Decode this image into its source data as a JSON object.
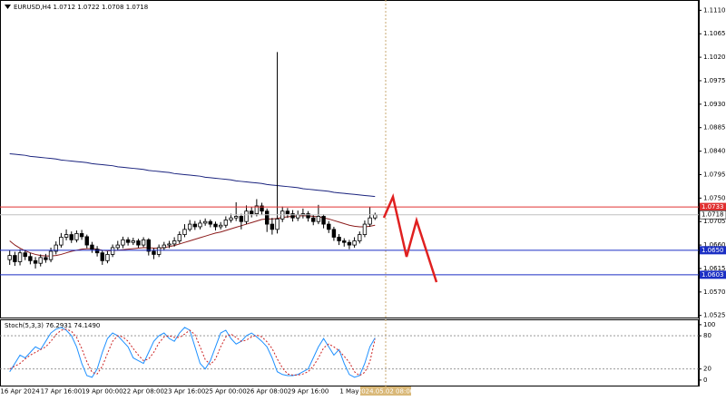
{
  "chart_data": [
    {
      "type": "candlestick",
      "title": "EURUSD,H4 1.0712 1.0722 1.0708 1.0718",
      "categories": [
        null,
        null,
        "16 Apr 2024",
        null,
        null,
        null,
        null,
        null,
        null,
        null,
        "17 Apr 16:00",
        null,
        null,
        null,
        null,
        null,
        null,
        null,
        "19 Apr 00:00",
        null,
        null,
        null,
        null,
        null,
        null,
        null,
        "22 Apr 08:00",
        null,
        null,
        null,
        null,
        null,
        null,
        null,
        "23 Apr 16:00",
        null,
        null,
        null,
        null,
        null,
        null,
        null,
        "25 Apr 00:00",
        null,
        null,
        null,
        null,
        null,
        null,
        null,
        "26 Apr 08:00",
        null,
        null,
        null,
        null,
        null,
        null,
        null,
        "29 Apr 16:00",
        null,
        null,
        null,
        null,
        null,
        null,
        null,
        "1 May",
        null,
        null,
        null,
        null,
        null
      ],
      "open": [
        1.0632,
        1.064,
        1.0628,
        1.0645,
        1.0638,
        1.063,
        1.0625,
        1.0636,
        1.0632,
        1.0648,
        1.066,
        1.0675,
        1.068,
        1.067,
        1.0682,
        1.0676,
        1.066,
        1.0652,
        1.0645,
        1.063,
        1.0642,
        1.0655,
        1.066,
        1.067,
        1.0665,
        1.0668,
        1.066,
        1.067,
        1.0648,
        1.0642,
        1.0655,
        1.066,
        1.0662,
        1.0668,
        1.068,
        1.069,
        1.07,
        1.0695,
        1.0702,
        1.0705,
        1.07,
        1.0695,
        1.0698,
        1.0708,
        1.0712,
        1.0715,
        1.0705,
        1.0725,
        1.072,
        1.0735,
        1.0725,
        1.07,
        1.069,
        1.071,
        1.0725,
        1.072,
        1.0712,
        1.0718,
        1.072,
        1.0712,
        1.0705,
        1.0715,
        1.07,
        1.069,
        1.0675,
        1.0668,
        1.0665,
        1.066,
        1.0668,
        1.068,
        1.07,
        1.0712
      ],
      "high": [
        1.065,
        1.0647,
        1.0652,
        1.0651,
        1.0645,
        1.0637,
        1.0642,
        1.0643,
        1.0655,
        1.0667,
        1.0683,
        1.069,
        1.0686,
        1.0688,
        1.0689,
        1.068,
        1.0666,
        1.0658,
        1.065,
        1.0648,
        1.0661,
        1.0668,
        1.0676,
        1.0675,
        1.0674,
        1.0672,
        1.0675,
        1.0673,
        1.0654,
        1.0661,
        1.0666,
        1.0668,
        1.0675,
        1.0686,
        1.07,
        1.0708,
        1.0706,
        1.0708,
        1.0711,
        1.0709,
        1.0705,
        1.0704,
        1.0715,
        1.072,
        1.0742,
        1.072,
        1.0736,
        1.0733,
        1.0748,
        1.0741,
        1.073,
        1.0712,
        1.103,
        1.0734,
        1.0731,
        1.0727,
        1.0726,
        1.073,
        1.0725,
        1.0718,
        1.0737,
        1.0719,
        1.0706,
        1.0695,
        1.0681,
        1.0673,
        1.067,
        1.0675,
        1.0686,
        1.0707,
        1.0733,
        1.0722
      ],
      "low": [
        1.0622,
        1.062,
        1.0621,
        1.0631,
        1.0623,
        1.0615,
        1.0619,
        1.0626,
        1.0627,
        1.0642,
        1.0655,
        1.0669,
        1.0664,
        1.0665,
        1.067,
        1.0654,
        1.0645,
        1.0638,
        1.0622,
        1.0625,
        1.0637,
        1.065,
        1.0654,
        1.0659,
        1.066,
        1.0655,
        1.0656,
        1.064,
        1.0633,
        1.0637,
        1.065,
        1.0654,
        1.0657,
        1.0663,
        1.0675,
        1.0686,
        1.0689,
        1.069,
        1.0697,
        1.0694,
        1.0688,
        1.069,
        1.0693,
        1.0703,
        1.0706,
        1.069,
        1.07,
        1.0713,
        1.0715,
        1.0718,
        1.0685,
        1.068,
        1.0682,
        1.0704,
        1.0712,
        1.0705,
        1.0706,
        1.0711,
        1.0705,
        1.0698,
        1.07,
        1.0692,
        1.0683,
        1.0668,
        1.066,
        1.0657,
        1.0652,
        1.0655,
        1.0663,
        1.0675,
        1.0695,
        1.0708
      ],
      "close": [
        1.064,
        1.0628,
        1.0645,
        1.0638,
        1.063,
        1.0625,
        1.0636,
        1.0632,
        1.0648,
        1.066,
        1.0675,
        1.068,
        1.067,
        1.0682,
        1.0676,
        1.066,
        1.0652,
        1.0645,
        1.063,
        1.0642,
        1.0655,
        1.066,
        1.067,
        1.0665,
        1.0668,
        1.066,
        1.067,
        1.0648,
        1.0642,
        1.0655,
        1.066,
        1.0662,
        1.0668,
        1.068,
        1.069,
        1.07,
        1.0695,
        1.0702,
        1.0705,
        1.07,
        1.0695,
        1.0698,
        1.0708,
        1.0712,
        1.0715,
        1.0705,
        1.0725,
        1.072,
        1.0735,
        1.0725,
        1.07,
        1.069,
        1.071,
        1.0725,
        1.072,
        1.0712,
        1.0718,
        1.072,
        1.0712,
        1.0705,
        1.0715,
        1.07,
        1.069,
        1.0675,
        1.0668,
        1.0665,
        1.066,
        1.0668,
        1.068,
        1.07,
        1.0712,
        1.0718
      ],
      "overlays": [
        {
          "color": "#8b1a1a",
          "values": [
            1.0668,
            1.066,
            1.0654,
            1.0649,
            1.0645,
            1.0642,
            1.064,
            1.0639,
            1.0639,
            1.064,
            1.0642,
            1.0645,
            1.0648,
            1.065,
            1.0652,
            1.0653,
            1.0653,
            1.0652,
            1.065,
            1.0649,
            1.0649,
            1.065,
            1.0651,
            1.0652,
            1.0653,
            1.0654,
            1.0655,
            1.0655,
            1.0654,
            1.0654,
            1.0655,
            1.0657,
            1.0659,
            1.0662,
            1.0665,
            1.0668,
            1.0671,
            1.0674,
            1.0677,
            1.068,
            1.0683,
            1.0685,
            1.0688,
            1.0691,
            1.0694,
            1.0697,
            1.07,
            1.0703,
            1.0706,
            1.0709,
            1.071,
            1.071,
            1.0711,
            1.0713,
            1.0714,
            1.0715,
            1.0716,
            1.0716,
            1.0716,
            1.0715,
            1.0714,
            1.0712,
            1.071,
            1.0707,
            1.0704,
            1.0701,
            1.0698,
            1.0696,
            1.0695,
            1.0695,
            1.0696,
            1.0698
          ]
        },
        {
          "color": "#1a237e",
          "values": [
            1.0835,
            1.0834,
            1.0833,
            1.0832,
            1.083,
            1.0829,
            1.0828,
            1.0827,
            1.0826,
            1.0825,
            1.0823,
            1.0822,
            1.0821,
            1.082,
            1.0819,
            1.0818,
            1.0816,
            1.0815,
            1.0814,
            1.0813,
            1.0812,
            1.081,
            1.0809,
            1.0808,
            1.0807,
            1.0806,
            1.0805,
            1.0803,
            1.0802,
            1.0801,
            1.08,
            1.0799,
            1.0797,
            1.0796,
            1.0795,
            1.0794,
            1.0793,
            1.0792,
            1.079,
            1.0789,
            1.0788,
            1.0787,
            1.0786,
            1.0785,
            1.0783,
            1.0782,
            1.0781,
            1.078,
            1.0779,
            1.0778,
            1.0776,
            1.0775,
            1.0774,
            1.0773,
            1.0772,
            1.0771,
            1.077,
            1.0768,
            1.0767,
            1.0766,
            1.0765,
            1.0764,
            1.0763,
            1.0761,
            1.076,
            1.0759,
            1.0758,
            1.0757,
            1.0756,
            1.0755,
            1.0754,
            1.0753
          ]
        }
      ],
      "levels": [
        {
          "value": 1.0733,
          "color": "#e03030"
        },
        {
          "value": 1.065,
          "label": "1.0650",
          "color": "#1b2fc4"
        },
        {
          "value": 1.0603,
          "color": "#1b2fc4"
        }
      ],
      "cursor_label": "2024.05.02 08:00",
      "ylim": [
        1.0521,
        1.1128
      ],
      "yticks": [
        {
          "value": 1.111,
          "label": "1.1110"
        },
        1.1065,
        {
          "value": 1.102,
          "label": "1.1020"
        },
        1.0975,
        {
          "value": 1.093,
          "label": "1.0930"
        },
        1.0885,
        {
          "value": 1.084,
          "label": "1.0840"
        },
        1.0795,
        {
          "value": 1.075,
          "label": "1.0750"
        },
        1.0705,
        {
          "value": 1.066,
          "label": "1.0660"
        },
        1.0615,
        {
          "value": 1.057,
          "label": "1.0570"
        },
        1.0525
      ],
      "grid": false
    },
    {
      "type": "line",
      "title": "Stoch(5,3,3) 76.2931 74.1490",
      "series": [
        {
          "color": "#1e90ff",
          "dash": false,
          "values": [
            15,
            30,
            45,
            40,
            50,
            60,
            55,
            70,
            85,
            92,
            95,
            90,
            80,
            60,
            30,
            8,
            5,
            20,
            50,
            75,
            85,
            80,
            70,
            60,
            40,
            35,
            30,
            50,
            70,
            80,
            85,
            75,
            70,
            85,
            95,
            90,
            60,
            30,
            20,
            35,
            60,
            85,
            90,
            75,
            65,
            70,
            80,
            85,
            78,
            70,
            60,
            40,
            15,
            10,
            8,
            8,
            10,
            15,
            20,
            40,
            60,
            75,
            60,
            45,
            55,
            30,
            10,
            5,
            8,
            30,
            60,
            76.2931
          ]
        },
        {
          "color": "#cc2222",
          "dash": true,
          "values": [
            20,
            25,
            30,
            38,
            45,
            50,
            55,
            60,
            70,
            82,
            90,
            92,
            88,
            77,
            57,
            33,
            14,
            11,
            25,
            48,
            70,
            80,
            78,
            70,
            57,
            45,
            35,
            38,
            50,
            67,
            78,
            80,
            77,
            77,
            83,
            90,
            82,
            60,
            37,
            28,
            38,
            60,
            78,
            83,
            77,
            70,
            72,
            78,
            81,
            78,
            69,
            57,
            38,
            22,
            11,
            9,
            9,
            11,
            15,
            25,
            40,
            58,
            65,
            60,
            53,
            43,
            32,
            15,
            8,
            14,
            33,
            74.149
          ]
        }
      ],
      "levels": [
        20,
        80
      ],
      "ylim": [
        -10,
        108
      ],
      "yticks": [
        0,
        20,
        80,
        100
      ]
    }
  ]
}
